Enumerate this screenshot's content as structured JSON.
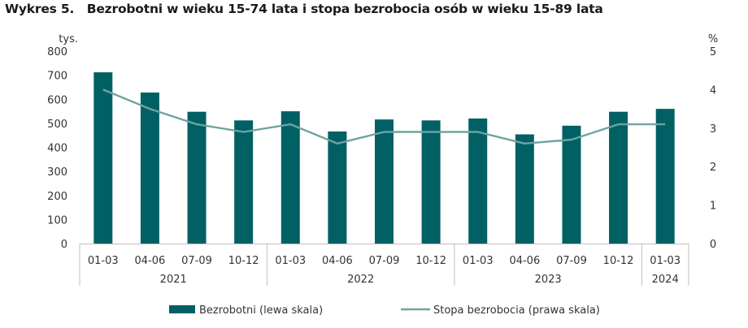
{
  "title": "Wykres 5.   Bezrobotni w wieku 15-74 lata i stopa bezrobocia osób w wieku 15-89 lata",
  "colors": {
    "bar": "#006064",
    "line": "#6fa3a0",
    "grid": "#d9d9d9",
    "axis": "#bfbfbf"
  },
  "chart_data": {
    "type": "bar",
    "categories": [
      "01-03",
      "04-06",
      "07-09",
      "10-12",
      "01-03",
      "04-06",
      "07-09",
      "10-12",
      "01-03",
      "04-06",
      "07-09",
      "10-12",
      "01-03"
    ],
    "groups": [
      {
        "label": "2021",
        "count": 4
      },
      {
        "label": "2022",
        "count": 4
      },
      {
        "label": "2023",
        "count": 4
      },
      {
        "label": "2024",
        "count": 1
      }
    ],
    "series": [
      {
        "name": "Bezrobotni (lewa skala)",
        "type": "bar",
        "axis": "left",
        "values": [
          712,
          628,
          548,
          512,
          550,
          466,
          516,
          512,
          520,
          454,
          490,
          548,
          560
        ]
      },
      {
        "name": "Stopa bezrobocia (prawa skala)",
        "type": "line",
        "axis": "right",
        "values": [
          4.0,
          3.5,
          3.1,
          2.9,
          3.1,
          2.6,
          2.9,
          2.9,
          2.9,
          2.6,
          2.7,
          3.1,
          3.1
        ]
      }
    ],
    "y_left": {
      "unit": "tys.",
      "ticks": [
        "0",
        "100",
        "200",
        "300",
        "400",
        "500",
        "600",
        "700",
        "800"
      ],
      "range": [
        0,
        800
      ]
    },
    "y_right": {
      "unit": "%",
      "ticks": [
        "0",
        "1",
        "2",
        "3",
        "4",
        "5"
      ],
      "range": [
        0,
        5
      ]
    },
    "grid": false,
    "legend_position": "bottom"
  }
}
